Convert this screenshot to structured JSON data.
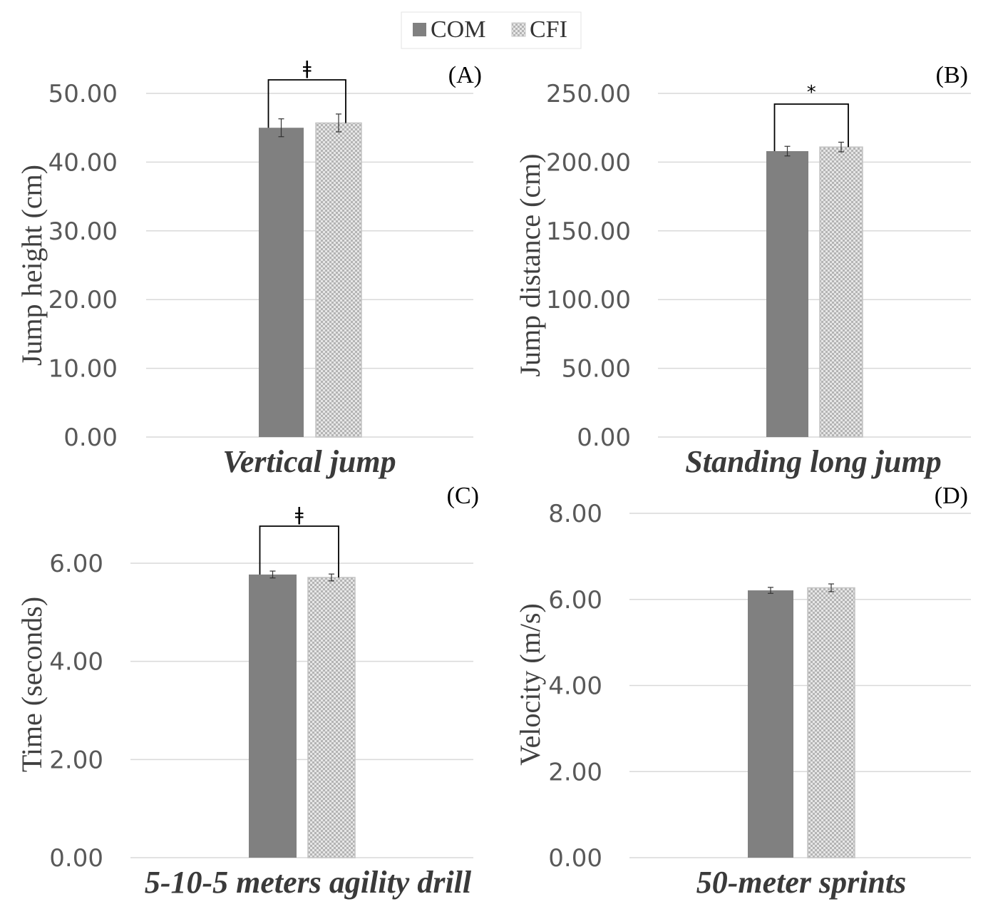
{
  "legend": {
    "items": [
      {
        "label": "COM",
        "color": "#808080",
        "pattern": "solid"
      },
      {
        "label": "CFI",
        "color": "#c8c8c8",
        "pattern": "checker"
      }
    ]
  },
  "chart_data": [
    {
      "type": "bar",
      "panel_label": "(A)",
      "xlabel": "Vertical jump",
      "ylabel": "Jump height (cm)",
      "ylim": [
        0,
        50
      ],
      "yticks": [
        "0.00",
        "10.00",
        "20.00",
        "30.00",
        "40.00",
        "50.00"
      ],
      "grid": true,
      "categories": [
        "Vertical jump"
      ],
      "series": [
        {
          "name": "COM",
          "values": [
            45.0
          ],
          "error": [
            1.3
          ]
        },
        {
          "name": "CFI",
          "values": [
            45.7
          ],
          "error": [
            1.3
          ]
        }
      ],
      "significance": "ǂ"
    },
    {
      "type": "bar",
      "panel_label": "(B)",
      "xlabel": "Standing long jump",
      "ylabel": "Jump distance (cm)",
      "ylim": [
        0,
        250
      ],
      "yticks": [
        "0.00",
        "50.00",
        "100.00",
        "150.00",
        "200.00",
        "250.00"
      ],
      "grid": true,
      "categories": [
        "Standing long jump"
      ],
      "series": [
        {
          "name": "COM",
          "values": [
            208.0
          ],
          "error": [
            3.5
          ]
        },
        {
          "name": "CFI",
          "values": [
            211.0
          ],
          "error": [
            3.5
          ]
        }
      ],
      "significance": "*"
    },
    {
      "type": "bar",
      "panel_label": "(C)",
      "xlabel": "5-10-5 meters agility drill",
      "ylabel": "Time (seconds)",
      "ylim": [
        0,
        6
      ],
      "yticks": [
        "0.00",
        "2.00",
        "4.00",
        "6.00"
      ],
      "grid": true,
      "categories": [
        "5-10-5 meters agility drill"
      ],
      "series": [
        {
          "name": "COM",
          "values": [
            5.77
          ],
          "error": [
            0.07
          ]
        },
        {
          "name": "CFI",
          "values": [
            5.71
          ],
          "error": [
            0.07
          ]
        }
      ],
      "significance": "ǂ"
    },
    {
      "type": "bar",
      "panel_label": "(D)",
      "xlabel": "50-meter sprints",
      "ylabel": "Velocity (m/s)",
      "ylim": [
        0,
        8
      ],
      "yticks": [
        "0.00",
        "2.00",
        "4.00",
        "6.00",
        "8.00"
      ],
      "grid": true,
      "categories": [
        "50-meter sprints"
      ],
      "series": [
        {
          "name": "COM",
          "values": [
            6.21
          ],
          "error": [
            0.07
          ]
        },
        {
          "name": "CFI",
          "values": [
            6.27
          ],
          "error": [
            0.09
          ]
        }
      ],
      "significance": ""
    }
  ]
}
